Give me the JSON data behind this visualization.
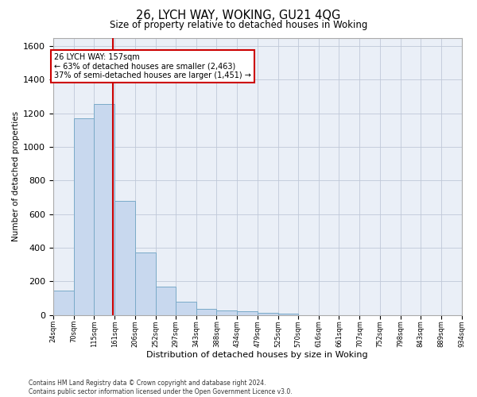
{
  "title1": "26, LYCH WAY, WOKING, GU21 4QG",
  "title2": "Size of property relative to detached houses in Woking",
  "xlabel": "Distribution of detached houses by size in Woking",
  "ylabel": "Number of detached properties",
  "bin_edges": [
    24,
    70,
    115,
    161,
    206,
    252,
    297,
    343,
    388,
    434,
    479,
    525,
    570,
    616,
    661,
    707,
    752,
    798,
    843,
    889,
    934
  ],
  "bar_heights": [
    145,
    1170,
    1255,
    680,
    370,
    170,
    80,
    35,
    25,
    20,
    15,
    10,
    0,
    0,
    0,
    0,
    0,
    0,
    0,
    0
  ],
  "bar_color": "#c8d8ee",
  "bar_edge_color": "#7aaac8",
  "grid_color": "#c0c8d8",
  "bg_color": "#eaeff7",
  "red_line_x": 157,
  "annotation_text": "26 LYCH WAY: 157sqm\n← 63% of detached houses are smaller (2,463)\n37% of semi-detached houses are larger (1,451) →",
  "annotation_box_facecolor": "#ffffff",
  "annotation_border_color": "#cc0000",
  "ylim_max": 1650,
  "yticks": [
    0,
    200,
    400,
    600,
    800,
    1000,
    1200,
    1400,
    1600
  ],
  "footer1": "Contains HM Land Registry data © Crown copyright and database right 2024.",
  "footer2": "Contains public sector information licensed under the Open Government Licence v3.0."
}
